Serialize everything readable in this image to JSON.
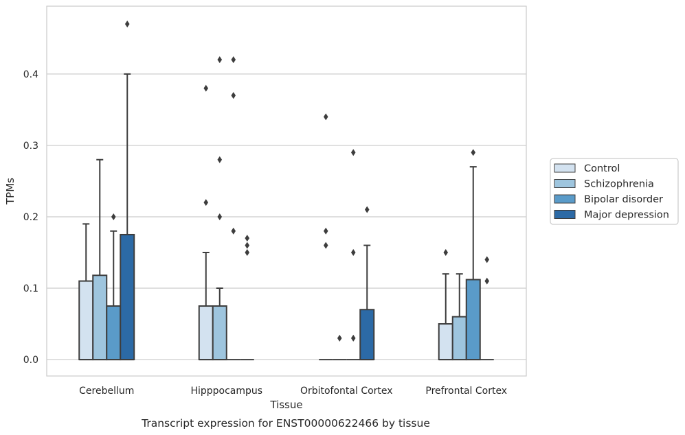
{
  "chart_data": {
    "type": "box",
    "title": "",
    "caption": "Transcript expression for ENST00000622466 by tissue",
    "xlabel": "Tissue",
    "ylabel": "TPMs",
    "ylim": [
      -0.023,
      0.495
    ],
    "yticks": [
      0.0,
      0.1,
      0.2,
      0.3,
      0.4
    ],
    "ytick_labels": [
      "0.0",
      "0.1",
      "0.2",
      "0.3",
      "0.4"
    ],
    "grid": "horizontal",
    "legend_position": "right",
    "categories": [
      "Cerebellum",
      "Hipppocampus",
      "Orbitofontal Cortex",
      "Prefrontal Cortex"
    ],
    "colors": {
      "Control": "#d3e2f0",
      "Schizophrenia": "#9ec5de",
      "Bipolar disorder": "#5a9bc9",
      "Major depression": "#2c6aa6"
    },
    "series": [
      {
        "name": "Control",
        "boxes": [
          {
            "q1": 0.0,
            "median": 0.0,
            "q3": 0.11,
            "whisker_low": 0.0,
            "whisker_high": 0.19,
            "outliers": []
          },
          {
            "q1": 0.0,
            "median": 0.0,
            "q3": 0.075,
            "whisker_low": 0.0,
            "whisker_high": 0.15,
            "outliers": [
              0.22,
              0.38
            ]
          },
          {
            "q1": 0.0,
            "median": 0.0,
            "q3": 0.0,
            "whisker_low": 0.0,
            "whisker_high": 0.0,
            "outliers": [
              0.16,
              0.18,
              0.34
            ]
          },
          {
            "q1": 0.0,
            "median": 0.0,
            "q3": 0.05,
            "whisker_low": 0.0,
            "whisker_high": 0.12,
            "outliers": [
              0.15
            ]
          }
        ]
      },
      {
        "name": "Schizophrenia",
        "boxes": [
          {
            "q1": 0.0,
            "median": 0.0,
            "q3": 0.118,
            "whisker_low": 0.0,
            "whisker_high": 0.28,
            "outliers": []
          },
          {
            "q1": 0.0,
            "median": 0.0,
            "q3": 0.075,
            "whisker_low": 0.0,
            "whisker_high": 0.1,
            "outliers": [
              0.2,
              0.28,
              0.42
            ]
          },
          {
            "q1": 0.0,
            "median": 0.0,
            "q3": 0.0,
            "whisker_low": 0.0,
            "whisker_high": 0.0,
            "outliers": [
              0.03
            ]
          },
          {
            "q1": 0.0,
            "median": 0.0,
            "q3": 0.06,
            "whisker_low": 0.0,
            "whisker_high": 0.12,
            "outliers": []
          }
        ]
      },
      {
        "name": "Bipolar disorder",
        "boxes": [
          {
            "q1": 0.0,
            "median": 0.0,
            "q3": 0.075,
            "whisker_low": 0.0,
            "whisker_high": 0.18,
            "outliers": [
              0.2
            ]
          },
          {
            "q1": 0.0,
            "median": 0.0,
            "q3": 0.0,
            "whisker_low": 0.0,
            "whisker_high": 0.0,
            "outliers": [
              0.18,
              0.37,
              0.42
            ]
          },
          {
            "q1": 0.0,
            "median": 0.0,
            "q3": 0.0,
            "whisker_low": 0.0,
            "whisker_high": 0.0,
            "outliers": [
              0.03,
              0.15,
              0.29
            ]
          },
          {
            "q1": 0.0,
            "median": 0.0,
            "q3": 0.112,
            "whisker_low": 0.0,
            "whisker_high": 0.27,
            "outliers": [
              0.29
            ]
          }
        ]
      },
      {
        "name": "Major depression",
        "boxes": [
          {
            "q1": 0.0,
            "median": 0.0,
            "q3": 0.175,
            "whisker_low": 0.0,
            "whisker_high": 0.4,
            "outliers": [
              0.47
            ]
          },
          {
            "q1": 0.0,
            "median": 0.0,
            "q3": 0.0,
            "whisker_low": 0.0,
            "whisker_high": 0.0,
            "outliers": [
              0.15,
              0.16,
              0.17
            ]
          },
          {
            "q1": 0.0,
            "median": 0.0,
            "q3": 0.07,
            "whisker_low": 0.0,
            "whisker_high": 0.16,
            "outliers": [
              0.21
            ]
          },
          {
            "q1": 0.0,
            "median": 0.0,
            "q3": 0.0,
            "whisker_low": 0.0,
            "whisker_high": 0.0,
            "outliers": [
              0.11,
              0.14
            ]
          }
        ]
      }
    ]
  }
}
